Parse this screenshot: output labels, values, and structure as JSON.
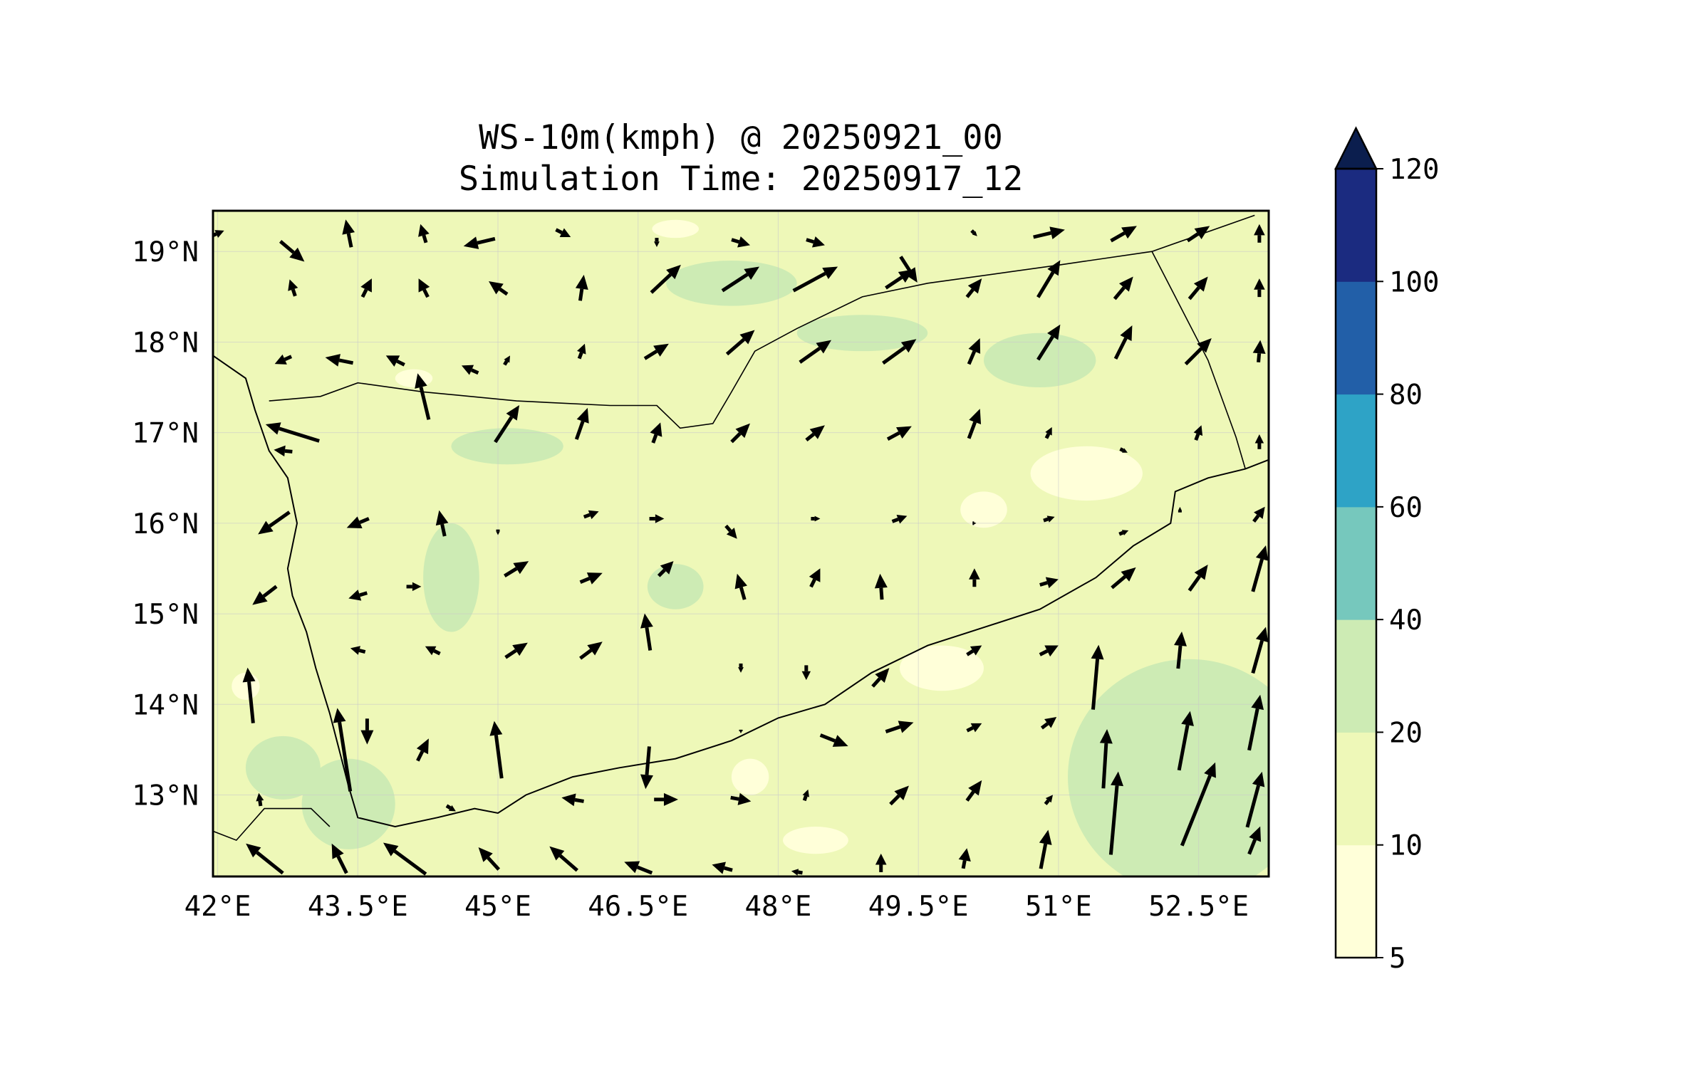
{
  "title": {
    "line1": "WS-10m(kmph) @ 20250921_00",
    "line2": "Simulation Time: 20250917_12"
  },
  "map": {
    "lon_range": [
      41.95,
      53.25
    ],
    "lat_range": [
      12.1,
      19.45
    ],
    "lon_ticks": [
      {
        "value": 42.0,
        "label": "42°E"
      },
      {
        "value": 43.5,
        "label": "43.5°E"
      },
      {
        "value": 45.0,
        "label": "45°E"
      },
      {
        "value": 46.5,
        "label": "46.5°E"
      },
      {
        "value": 48.0,
        "label": "48°E"
      },
      {
        "value": 49.5,
        "label": "49.5°E"
      },
      {
        "value": 51.0,
        "label": "51°E"
      },
      {
        "value": 52.5,
        "label": "52.5°E"
      }
    ],
    "lat_ticks": [
      {
        "value": 19,
        "label": "19°N"
      },
      {
        "value": 18,
        "label": "18°N"
      },
      {
        "value": 17,
        "label": "17°N"
      },
      {
        "value": 16,
        "label": "16°N"
      },
      {
        "value": 15,
        "label": "15°N"
      },
      {
        "value": 14,
        "label": "14°N"
      },
      {
        "value": 13,
        "label": "13°N"
      }
    ],
    "gridlines": true,
    "coastline": [
      [
        41.95,
        17.85
      ],
      [
        42.3,
        17.6
      ],
      [
        42.4,
        17.25
      ],
      [
        42.55,
        16.8
      ],
      [
        42.75,
        16.5
      ],
      [
        42.85,
        16.0
      ],
      [
        42.75,
        15.5
      ],
      [
        42.8,
        15.2
      ],
      [
        42.95,
        14.8
      ],
      [
        43.05,
        14.4
      ],
      [
        43.2,
        13.9
      ],
      [
        43.3,
        13.5
      ],
      [
        43.4,
        13.1
      ],
      [
        43.5,
        12.75
      ],
      [
        43.9,
        12.65
      ],
      [
        44.35,
        12.75
      ],
      [
        44.75,
        12.85
      ],
      [
        45.0,
        12.8
      ],
      [
        45.3,
        13.0
      ],
      [
        45.8,
        13.2
      ],
      [
        46.3,
        13.3
      ],
      [
        46.9,
        13.4
      ],
      [
        47.5,
        13.6
      ],
      [
        48.0,
        13.85
      ],
      [
        48.5,
        14.0
      ],
      [
        49.0,
        14.35
      ],
      [
        49.6,
        14.65
      ],
      [
        50.2,
        14.85
      ],
      [
        50.8,
        15.05
      ],
      [
        51.4,
        15.4
      ],
      [
        51.8,
        15.75
      ],
      [
        52.2,
        16.0
      ],
      [
        52.25,
        16.35
      ],
      [
        52.6,
        16.5
      ],
      [
        53.0,
        16.6
      ],
      [
        53.25,
        16.7
      ]
    ],
    "borders": [
      [
        [
          42.55,
          17.35
        ],
        [
          43.1,
          17.4
        ],
        [
          43.5,
          17.55
        ],
        [
          44.2,
          17.45
        ],
        [
          45.2,
          17.35
        ],
        [
          46.2,
          17.3
        ],
        [
          46.7,
          17.3
        ],
        [
          46.95,
          17.05
        ],
        [
          47.3,
          17.1
        ],
        [
          47.5,
          17.45
        ],
        [
          47.75,
          17.9
        ],
        [
          48.2,
          18.15
        ],
        [
          48.9,
          18.5
        ],
        [
          49.6,
          18.65
        ],
        [
          51.0,
          18.85
        ],
        [
          52.0,
          19.0
        ],
        [
          53.1,
          19.4
        ]
      ],
      [
        [
          52.0,
          19.0
        ],
        [
          52.6,
          17.8
        ],
        [
          52.9,
          16.95
        ],
        [
          53.0,
          16.6
        ]
      ],
      [
        [
          41.95,
          12.6
        ],
        [
          42.2,
          12.5
        ],
        [
          42.5,
          12.85
        ],
        [
          43.0,
          12.85
        ],
        [
          43.2,
          12.65
        ]
      ]
    ],
    "wind_arrows": [
      {
        "lon": 42.0,
        "lat": 19.2,
        "u": 0.7,
        "v": 0.3
      },
      {
        "lon": 42.8,
        "lat": 19.0,
        "u": 1.3,
        "v": -1.1
      },
      {
        "lon": 43.4,
        "lat": 19.2,
        "u": -0.3,
        "v": 1.5
      },
      {
        "lon": 44.2,
        "lat": 19.2,
        "u": -0.3,
        "v": 1.0
      },
      {
        "lon": 44.8,
        "lat": 19.1,
        "u": -1.7,
        "v": -0.4
      },
      {
        "lon": 45.7,
        "lat": 19.2,
        "u": 0.8,
        "v": -0.4
      },
      {
        "lon": 46.7,
        "lat": 19.1,
        "u": 0.0,
        "v": -0.5
      },
      {
        "lon": 47.6,
        "lat": 19.1,
        "u": 1.0,
        "v": -0.3
      },
      {
        "lon": 48.4,
        "lat": 19.1,
        "u": 1.0,
        "v": -0.3
      },
      {
        "lon": 49.4,
        "lat": 18.8,
        "u": 0.9,
        "v": -1.4
      },
      {
        "lon": 50.1,
        "lat": 19.2,
        "u": 0.3,
        "v": -0.3
      },
      {
        "lon": 50.9,
        "lat": 19.2,
        "u": 1.7,
        "v": 0.4
      },
      {
        "lon": 51.7,
        "lat": 19.2,
        "u": 1.4,
        "v": 0.8
      },
      {
        "lon": 52.5,
        "lat": 19.2,
        "u": 1.2,
        "v": 0.8
      },
      {
        "lon": 53.15,
        "lat": 19.2,
        "u": 0.0,
        "v": 1.0
      },
      {
        "lon": 42.8,
        "lat": 18.6,
        "u": -0.3,
        "v": 0.9
      },
      {
        "lon": 43.6,
        "lat": 18.6,
        "u": 0.5,
        "v": 1.0
      },
      {
        "lon": 44.2,
        "lat": 18.6,
        "u": -0.5,
        "v": 1.0
      },
      {
        "lon": 45.0,
        "lat": 18.6,
        "u": -1.0,
        "v": 0.7
      },
      {
        "lon": 45.9,
        "lat": 18.6,
        "u": 0.2,
        "v": 1.4
      },
      {
        "lon": 46.8,
        "lat": 18.7,
        "u": 1.6,
        "v": 1.5
      },
      {
        "lon": 47.6,
        "lat": 18.7,
        "u": 2.0,
        "v": 1.3
      },
      {
        "lon": 48.4,
        "lat": 18.7,
        "u": 2.4,
        "v": 1.3
      },
      {
        "lon": 49.3,
        "lat": 18.7,
        "u": 1.5,
        "v": 1.0
      },
      {
        "lon": 50.1,
        "lat": 18.6,
        "u": 0.8,
        "v": 1.0
      },
      {
        "lon": 50.9,
        "lat": 18.7,
        "u": 1.2,
        "v": 2.0
      },
      {
        "lon": 51.7,
        "lat": 18.6,
        "u": 1.0,
        "v": 1.2
      },
      {
        "lon": 52.5,
        "lat": 18.6,
        "u": 1.0,
        "v": 1.2
      },
      {
        "lon": 53.15,
        "lat": 18.6,
        "u": 0.0,
        "v": 1.0
      },
      {
        "lon": 42.7,
        "lat": 17.8,
        "u": -0.9,
        "v": -0.4
      },
      {
        "lon": 43.3,
        "lat": 17.8,
        "u": -1.5,
        "v": 0.3
      },
      {
        "lon": 43.9,
        "lat": 17.8,
        "u": -1.0,
        "v": 0.5
      },
      {
        "lon": 44.2,
        "lat": 17.4,
        "u": -0.6,
        "v": 2.5
      },
      {
        "lon": 44.7,
        "lat": 17.7,
        "u": -0.9,
        "v": 0.4
      },
      {
        "lon": 45.1,
        "lat": 17.8,
        "u": 0.3,
        "v": 0.5
      },
      {
        "lon": 45.9,
        "lat": 17.9,
        "u": 0.3,
        "v": 0.8
      },
      {
        "lon": 46.7,
        "lat": 17.9,
        "u": 1.3,
        "v": 0.8
      },
      {
        "lon": 47.6,
        "lat": 18.0,
        "u": 1.5,
        "v": 1.3
      },
      {
        "lon": 48.4,
        "lat": 17.9,
        "u": 1.7,
        "v": 1.2
      },
      {
        "lon": 49.3,
        "lat": 17.9,
        "u": 1.8,
        "v": 1.3
      },
      {
        "lon": 50.1,
        "lat": 17.9,
        "u": 0.6,
        "v": 1.4
      },
      {
        "lon": 50.9,
        "lat": 18.0,
        "u": 1.2,
        "v": 1.9
      },
      {
        "lon": 51.7,
        "lat": 18.0,
        "u": 0.9,
        "v": 1.8
      },
      {
        "lon": 52.5,
        "lat": 17.9,
        "u": 1.4,
        "v": 1.4
      },
      {
        "lon": 53.15,
        "lat": 17.9,
        "u": 0.1,
        "v": 1.2
      },
      {
        "lon": 42.8,
        "lat": 17.0,
        "u": -2.9,
        "v": 0.9
      },
      {
        "lon": 42.7,
        "lat": 16.8,
        "u": -1.0,
        "v": 0.1
      },
      {
        "lon": 44.4,
        "lat": 16.0,
        "u": -0.3,
        "v": 1.4
      },
      {
        "lon": 45.1,
        "lat": 17.1,
        "u": 1.3,
        "v": 2.0
      },
      {
        "lon": 45.9,
        "lat": 17.1,
        "u": 0.6,
        "v": 1.7
      },
      {
        "lon": 46.7,
        "lat": 17.0,
        "u": 0.4,
        "v": 1.1
      },
      {
        "lon": 47.6,
        "lat": 17.0,
        "u": 1.0,
        "v": 1.0
      },
      {
        "lon": 48.4,
        "lat": 17.0,
        "u": 1.0,
        "v": 0.8
      },
      {
        "lon": 49.3,
        "lat": 17.0,
        "u": 1.3,
        "v": 0.7
      },
      {
        "lon": 50.1,
        "lat": 17.1,
        "u": 0.6,
        "v": 1.6
      },
      {
        "lon": 50.9,
        "lat": 17.0,
        "u": 0.3,
        "v": 0.6
      },
      {
        "lon": 51.7,
        "lat": 16.8,
        "u": 0.4,
        "v": -0.2
      },
      {
        "lon": 52.5,
        "lat": 17.0,
        "u": 0.3,
        "v": 0.8
      },
      {
        "lon": 53.15,
        "lat": 16.9,
        "u": 0.0,
        "v": 0.8
      },
      {
        "lon": 42.6,
        "lat": 16.0,
        "u": -1.7,
        "v": -1.2
      },
      {
        "lon": 43.5,
        "lat": 16.0,
        "u": -1.2,
        "v": -0.5
      },
      {
        "lon": 45.0,
        "lat": 15.9,
        "u": 0.0,
        "v": -0.3
      },
      {
        "lon": 46.0,
        "lat": 16.1,
        "u": 0.8,
        "v": 0.3
      },
      {
        "lon": 46.7,
        "lat": 16.05,
        "u": 0.8,
        "v": 0.0
      },
      {
        "lon": 47.5,
        "lat": 15.9,
        "u": 0.6,
        "v": -0.7
      },
      {
        "lon": 47.6,
        "lat": 15.3,
        "u": -0.4,
        "v": 1.4
      },
      {
        "lon": 48.4,
        "lat": 16.05,
        "u": 0.5,
        "v": 0.0
      },
      {
        "lon": 49.3,
        "lat": 16.05,
        "u": 0.8,
        "v": 0.3
      },
      {
        "lon": 50.1,
        "lat": 16.0,
        "u": 0.2,
        "v": 0.0
      },
      {
        "lon": 50.9,
        "lat": 16.05,
        "u": 0.6,
        "v": 0.2
      },
      {
        "lon": 51.7,
        "lat": 15.9,
        "u": 0.5,
        "v": 0.2
      },
      {
        "lon": 52.3,
        "lat": 16.15,
        "u": 0.0,
        "v": 0.3
      },
      {
        "lon": 53.15,
        "lat": 16.1,
        "u": 0.6,
        "v": 0.8
      },
      {
        "lon": 42.5,
        "lat": 15.2,
        "u": -1.3,
        "v": -1.0
      },
      {
        "lon": 43.5,
        "lat": 15.2,
        "u": -1.0,
        "v": -0.3
      },
      {
        "lon": 44.1,
        "lat": 15.3,
        "u": 0.8,
        "v": 0.0
      },
      {
        "lon": 45.2,
        "lat": 15.5,
        "u": 1.3,
        "v": 0.8
      },
      {
        "lon": 46.0,
        "lat": 15.4,
        "u": 1.2,
        "v": 0.5
      },
      {
        "lon": 46.8,
        "lat": 15.5,
        "u": 0.8,
        "v": 0.8
      },
      {
        "lon": 48.4,
        "lat": 15.4,
        "u": 0.5,
        "v": 1.0
      },
      {
        "lon": 49.1,
        "lat": 15.3,
        "u": -0.1,
        "v": 1.4
      },
      {
        "lon": 50.1,
        "lat": 15.4,
        "u": 0.0,
        "v": 1.0
      },
      {
        "lon": 50.9,
        "lat": 15.35,
        "u": 1.0,
        "v": 0.3
      },
      {
        "lon": 51.7,
        "lat": 15.4,
        "u": 1.3,
        "v": 1.1
      },
      {
        "lon": 52.5,
        "lat": 15.4,
        "u": 1.0,
        "v": 1.4
      },
      {
        "lon": 53.15,
        "lat": 15.5,
        "u": 0.7,
        "v": 2.5
      },
      {
        "lon": 43.5,
        "lat": 14.6,
        "u": -0.8,
        "v": 0.2
      },
      {
        "lon": 44.3,
        "lat": 14.6,
        "u": -0.8,
        "v": 0.4
      },
      {
        "lon": 45.2,
        "lat": 14.6,
        "u": 1.2,
        "v": 0.8
      },
      {
        "lon": 46.0,
        "lat": 14.6,
        "u": 1.2,
        "v": 0.9
      },
      {
        "lon": 46.6,
        "lat": 14.8,
        "u": -0.3,
        "v": 2.0
      },
      {
        "lon": 47.6,
        "lat": 14.4,
        "u": 0.0,
        "v": -0.5
      },
      {
        "lon": 48.3,
        "lat": 14.35,
        "u": 0.0,
        "v": -0.8
      },
      {
        "lon": 49.1,
        "lat": 14.3,
        "u": 0.9,
        "v": 1.0
      },
      {
        "lon": 50.1,
        "lat": 14.6,
        "u": 0.8,
        "v": 0.5
      },
      {
        "lon": 50.9,
        "lat": 14.6,
        "u": 1.0,
        "v": 0.5
      },
      {
        "lon": 51.4,
        "lat": 14.3,
        "u": 0.3,
        "v": 3.5
      },
      {
        "lon": 52.3,
        "lat": 14.6,
        "u": 0.2,
        "v": 2.0
      },
      {
        "lon": 53.15,
        "lat": 14.6,
        "u": 0.7,
        "v": 2.5
      },
      {
        "lon": 42.35,
        "lat": 14.1,
        "u": -0.3,
        "v": 3.0
      },
      {
        "lon": 43.35,
        "lat": 13.5,
        "u": -0.7,
        "v": 4.5
      },
      {
        "lon": 43.6,
        "lat": 13.7,
        "u": 0.0,
        "v": -1.4
      },
      {
        "lon": 44.2,
        "lat": 13.5,
        "u": 0.6,
        "v": 1.2
      },
      {
        "lon": 45.0,
        "lat": 13.5,
        "u": -0.4,
        "v": 3.1
      },
      {
        "lon": 46.6,
        "lat": 13.3,
        "u": -0.2,
        "v": -2.3
      },
      {
        "lon": 47.6,
        "lat": 13.7,
        "u": 0.0,
        "v": -0.2
      },
      {
        "lon": 48.6,
        "lat": 13.6,
        "u": 1.5,
        "v": -0.6
      },
      {
        "lon": 49.3,
        "lat": 13.75,
        "u": 1.5,
        "v": 0.5
      },
      {
        "lon": 50.1,
        "lat": 13.75,
        "u": 0.8,
        "v": 0.4
      },
      {
        "lon": 50.9,
        "lat": 13.8,
        "u": 0.8,
        "v": 0.6
      },
      {
        "lon": 51.5,
        "lat": 13.4,
        "u": 0.2,
        "v": 3.2
      },
      {
        "lon": 52.35,
        "lat": 13.6,
        "u": 0.6,
        "v": 3.2
      },
      {
        "lon": 53.1,
        "lat": 13.8,
        "u": 0.6,
        "v": 3.0
      },
      {
        "lon": 42.45,
        "lat": 12.95,
        "u": -0.1,
        "v": 0.7
      },
      {
        "lon": 44.5,
        "lat": 12.85,
        "u": 0.5,
        "v": -0.3
      },
      {
        "lon": 45.8,
        "lat": 12.95,
        "u": -1.2,
        "v": 0.2
      },
      {
        "lon": 46.8,
        "lat": 12.95,
        "u": 1.3,
        "v": 0.0
      },
      {
        "lon": 47.6,
        "lat": 12.95,
        "u": 1.1,
        "v": -0.2
      },
      {
        "lon": 48.3,
        "lat": 13.0,
        "u": 0.2,
        "v": 0.6
      },
      {
        "lon": 49.3,
        "lat": 13.0,
        "u": 1.0,
        "v": 1.0
      },
      {
        "lon": 50.1,
        "lat": 13.05,
        "u": 0.8,
        "v": 1.1
      },
      {
        "lon": 50.9,
        "lat": 12.95,
        "u": 0.4,
        "v": 0.5
      },
      {
        "lon": 51.6,
        "lat": 12.8,
        "u": 0.4,
        "v": 4.5
      },
      {
        "lon": 52.5,
        "lat": 12.9,
        "u": 1.8,
        "v": 4.5
      },
      {
        "lon": 53.1,
        "lat": 12.95,
        "u": 0.8,
        "v": 3.0
      },
      {
        "lon": 42.5,
        "lat": 12.3,
        "u": -2.0,
        "v": 1.6
      },
      {
        "lon": 43.3,
        "lat": 12.3,
        "u": -0.8,
        "v": 1.6
      },
      {
        "lon": 44.0,
        "lat": 12.3,
        "u": -2.3,
        "v": 1.7
      },
      {
        "lon": 44.9,
        "lat": 12.3,
        "u": -1.1,
        "v": 1.2
      },
      {
        "lon": 45.7,
        "lat": 12.3,
        "u": -1.5,
        "v": 1.3
      },
      {
        "lon": 46.5,
        "lat": 12.2,
        "u": -1.5,
        "v": 0.6
      },
      {
        "lon": 47.4,
        "lat": 12.2,
        "u": -1.1,
        "v": 0.3
      },
      {
        "lon": 48.2,
        "lat": 12.15,
        "u": -0.6,
        "v": 0.1
      },
      {
        "lon": 49.1,
        "lat": 12.25,
        "u": 0.0,
        "v": 1.0
      },
      {
        "lon": 50.0,
        "lat": 12.3,
        "u": 0.2,
        "v": 1.1
      },
      {
        "lon": 50.85,
        "lat": 12.4,
        "u": 0.4,
        "v": 2.1
      },
      {
        "lon": 53.1,
        "lat": 12.5,
        "u": 0.6,
        "v": 1.5
      }
    ],
    "shading_zones": [
      {
        "lon": 44.7,
        "lat": 17.8,
        "rx": 1.0,
        "ry": 0.25,
        "level": "10"
      },
      {
        "lon": 47.5,
        "lat": 18.65,
        "rx": 0.7,
        "ry": 0.25,
        "level": "20"
      },
      {
        "lon": 48.9,
        "lat": 18.1,
        "rx": 0.7,
        "ry": 0.2,
        "level": "20"
      },
      {
        "lon": 50.8,
        "lat": 17.8,
        "rx": 0.6,
        "ry": 0.3,
        "level": "20"
      },
      {
        "lon": 45.1,
        "lat": 16.85,
        "rx": 0.6,
        "ry": 0.2,
        "level": "20"
      },
      {
        "lon": 43.4,
        "lat": 12.9,
        "rx": 0.5,
        "ry": 0.5,
        "level": "20"
      },
      {
        "lon": 42.7,
        "lat": 13.3,
        "rx": 0.4,
        "ry": 0.35,
        "level": "20"
      },
      {
        "lon": 52.4,
        "lat": 13.2,
        "rx": 1.3,
        "ry": 1.3,
        "level": "20"
      },
      {
        "lon": 46.9,
        "lat": 15.3,
        "rx": 0.3,
        "ry": 0.25,
        "level": "20"
      },
      {
        "lon": 50.7,
        "lat": 15.7,
        "rx": 0.5,
        "ry": 0.35,
        "level": "10"
      },
      {
        "lon": 44.5,
        "lat": 15.4,
        "rx": 0.3,
        "ry": 0.6,
        "level": "20"
      },
      {
        "lon": 51.3,
        "lat": 16.55,
        "rx": 0.6,
        "ry": 0.3,
        "level": "5"
      },
      {
        "lon": 50.2,
        "lat": 16.15,
        "rx": 0.25,
        "ry": 0.2,
        "level": "5"
      },
      {
        "lon": 49.75,
        "lat": 14.4,
        "rx": 0.45,
        "ry": 0.25,
        "level": "5"
      },
      {
        "lon": 48.4,
        "lat": 12.5,
        "rx": 0.35,
        "ry": 0.15,
        "level": "5"
      },
      {
        "lon": 47.7,
        "lat": 13.2,
        "rx": 0.2,
        "ry": 0.2,
        "level": "5"
      },
      {
        "lon": 44.1,
        "lat": 17.6,
        "rx": 0.2,
        "ry": 0.1,
        "level": "5"
      },
      {
        "lon": 46.9,
        "lat": 19.25,
        "rx": 0.25,
        "ry": 0.1,
        "level": "5"
      },
      {
        "lon": 42.3,
        "lat": 14.2,
        "rx": 0.15,
        "ry": 0.15,
        "level": "5"
      }
    ]
  },
  "colorbar": {
    "ticks": [
      "5",
      "10",
      "20",
      "40",
      "60",
      "80",
      "100",
      "120"
    ],
    "colors": [
      "#ffffd9",
      "#eef8b8",
      "#cdebb4",
      "#76c8bd",
      "#2ea3c6",
      "#225fa8",
      "#1b2b80"
    ],
    "extend_color": "#0b1e4e"
  }
}
